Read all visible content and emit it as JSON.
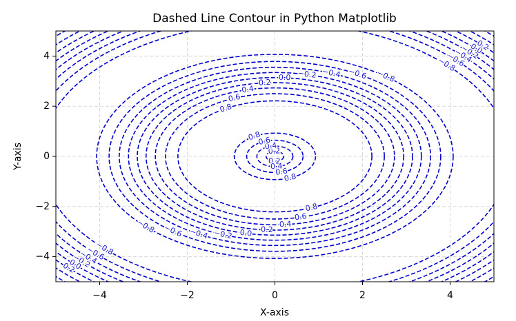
{
  "chart_data": {
    "type": "contour",
    "title": "Dashed Line Contour in Python Matplotlib",
    "x_label": "X-axis",
    "y_label": "Y-axis",
    "levels": [
      -0.8,
      -0.6,
      -0.4,
      -0.2,
      0,
      0.2,
      0.4,
      0.6,
      0.8
    ],
    "value_labels": [
      "−0.8",
      "−0.6",
      "−0.4",
      "−0.2",
      "0.0",
      "0.2",
      "0.4",
      "0.6",
      "0.8"
    ],
    "color": "#0000cc",
    "linestyle": "dashed",
    "xlim": [
      -5,
      5
    ],
    "ylim": [
      -5,
      5
    ],
    "xticks": [
      {
        "value": -4,
        "label": "−4"
      },
      {
        "value": -2,
        "label": "−2"
      },
      0,
      2,
      4
    ],
    "yticks": [
      {
        "value": -4,
        "label": "−4"
      },
      {
        "value": -2,
        "label": "−2"
      },
      0,
      2,
      4
    ],
    "grid": true
  }
}
